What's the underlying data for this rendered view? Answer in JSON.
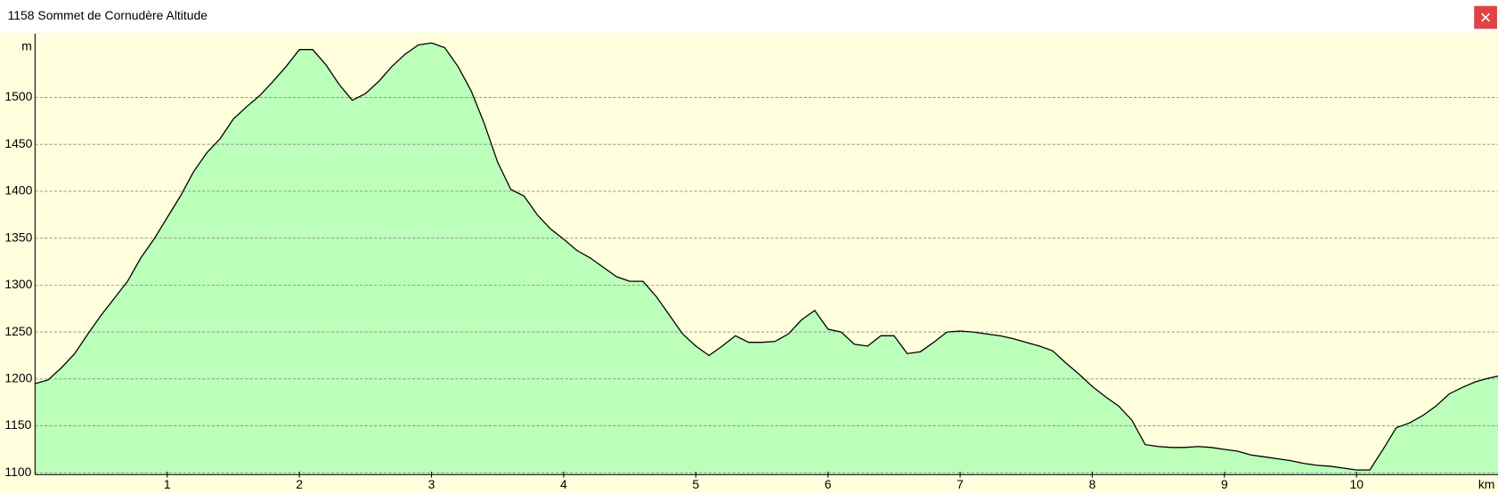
{
  "chart_data": {
    "type": "area",
    "title": "1158 Sommet de Cornudère Altitude",
    "y_label": "m",
    "x_label": "km",
    "color": "#bbffbb",
    "line_color": "#000000",
    "background": "#ffffdd",
    "grid": true,
    "x": [
      0,
      0.1,
      0.2,
      0.3,
      0.4,
      0.5,
      0.6,
      0.7,
      0.8,
      0.9,
      1.0,
      1.1,
      1.2,
      1.3,
      1.4,
      1.5,
      1.6,
      1.7,
      1.8,
      1.9,
      2.0,
      2.1,
      2.2,
      2.3,
      2.4,
      2.5,
      2.6,
      2.7,
      2.8,
      2.9,
      3.0,
      3.1,
      3.2,
      3.3,
      3.4,
      3.5,
      3.6,
      3.7,
      3.8,
      3.9,
      4.0,
      4.1,
      4.2,
      4.3,
      4.4,
      4.5,
      4.6,
      4.7,
      4.8,
      4.9,
      5.0,
      5.1,
      5.2,
      5.3,
      5.4,
      5.5,
      5.6,
      5.7,
      5.8,
      5.9,
      6.0,
      6.1,
      6.2,
      6.3,
      6.4,
      6.5,
      6.6,
      6.7,
      6.8,
      6.9,
      7.0,
      7.1,
      7.2,
      7.3,
      7.4,
      7.5,
      7.6,
      7.7,
      7.8,
      7.9,
      8.0,
      8.1,
      8.2,
      8.3,
      8.4,
      8.5,
      8.6,
      8.7,
      8.8,
      8.9,
      9.0,
      9.1,
      9.2,
      9.3,
      9.4,
      9.5,
      9.6,
      9.7,
      9.8,
      9.9,
      10.0,
      10.1,
      10.2,
      10.3,
      10.4,
      10.5,
      10.6,
      10.7,
      10.8,
      10.9,
      11.0,
      11.07
    ],
    "values": [
      1195,
      1199,
      1212,
      1227,
      1248,
      1268,
      1286,
      1304,
      1329,
      1349,
      1372,
      1395,
      1421,
      1441,
      1456,
      1477,
      1490,
      1502,
      1517,
      1533,
      1551,
      1551,
      1535,
      1514,
      1497,
      1504,
      1517,
      1533,
      1546,
      1556,
      1558,
      1553,
      1533,
      1507,
      1472,
      1431,
      1402,
      1395,
      1375,
      1360,
      1349,
      1337,
      1329,
      1319,
      1309,
      1304,
      1304,
      1288,
      1268,
      1248,
      1235,
      1225,
      1235,
      1246,
      1239,
      1239,
      1240,
      1248,
      1263,
      1273,
      1253,
      1250,
      1237,
      1235,
      1246,
      1246,
      1227,
      1229,
      1239,
      1250,
      1251,
      1250,
      1248,
      1246,
      1243,
      1239,
      1235,
      1230,
      1217,
      1205,
      1192,
      1181,
      1171,
      1156,
      1130,
      1128,
      1127,
      1127,
      1128,
      1127,
      1125,
      1123,
      1119,
      1117,
      1115,
      1113,
      1110,
      1108,
      1107,
      1105,
      1103,
      1103,
      1125,
      1148,
      1153,
      1161,
      1171,
      1184,
      1191,
      1197,
      1201,
      1203
    ],
    "xlim": [
      0,
      11.07
    ],
    "ylim": [
      1098,
      1568
    ],
    "xticks": [
      1,
      2,
      3,
      4,
      5,
      6,
      7,
      8,
      9,
      10
    ],
    "yticks": [
      1100,
      1150,
      1200,
      1250,
      1300,
      1350,
      1400,
      1450,
      1500
    ]
  }
}
